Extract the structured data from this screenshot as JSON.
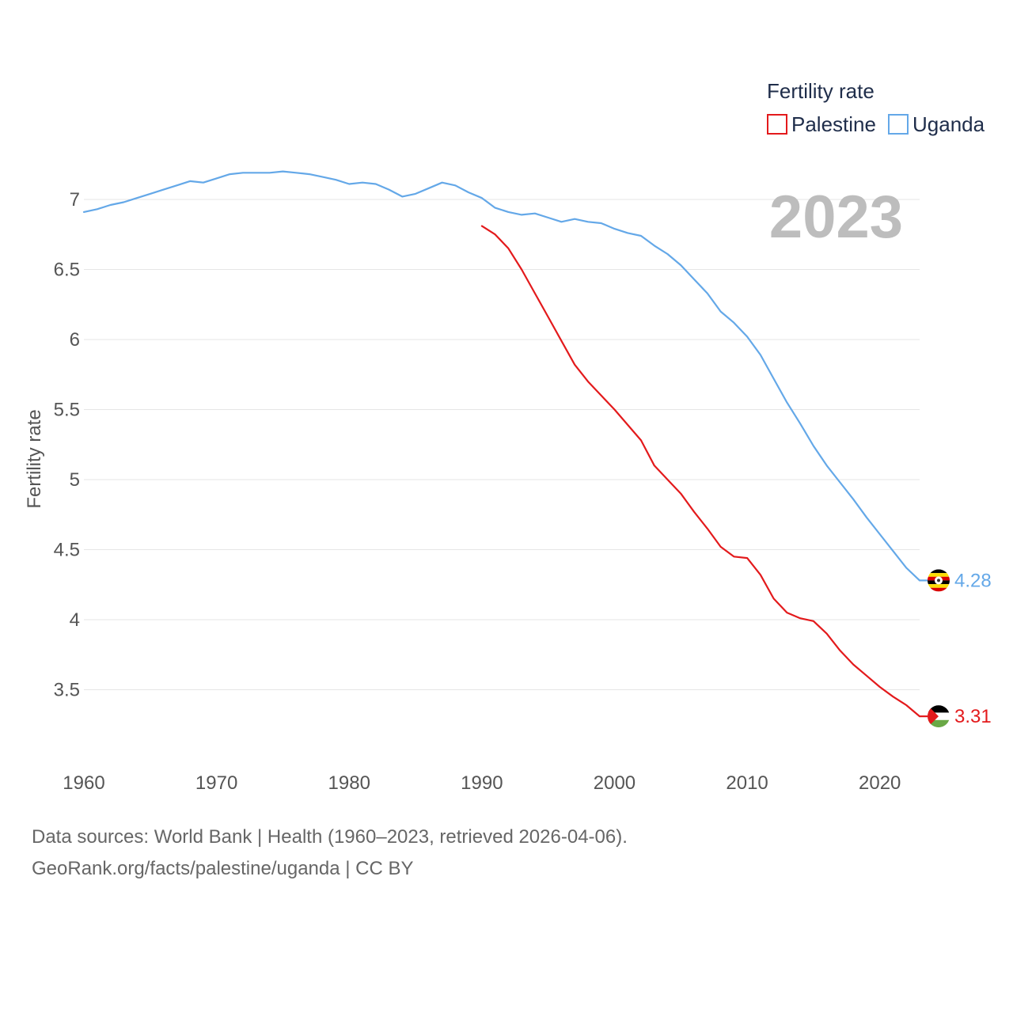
{
  "chart_data": {
    "type": "line",
    "legend_title": "Fertility rate",
    "ylabel": "Fertility rate",
    "xlabel": "",
    "year_label": "2023",
    "xlim": [
      1960,
      2023
    ],
    "ylim": [
      3.0,
      7.35
    ],
    "x_ticks": [
      1960,
      1970,
      1980,
      1990,
      2000,
      2010,
      2020
    ],
    "y_ticks": [
      3.5,
      4,
      4.5,
      5,
      5.5,
      6,
      6.5,
      7
    ],
    "legend_position": "top-right",
    "series": [
      {
        "name": "Palestine",
        "color": "#e31a1c",
        "flag_icon": "palestine-flag-icon",
        "end_label": "3.31",
        "points": [
          [
            1990,
            6.81
          ],
          [
            1991,
            6.75
          ],
          [
            1992,
            6.65
          ],
          [
            1993,
            6.5
          ],
          [
            1994,
            6.33
          ],
          [
            1995,
            6.16
          ],
          [
            1996,
            5.99
          ],
          [
            1997,
            5.82
          ],
          [
            1998,
            5.7
          ],
          [
            1999,
            5.6
          ],
          [
            2000,
            5.5
          ],
          [
            2001,
            5.39
          ],
          [
            2002,
            5.28
          ],
          [
            2003,
            5.1
          ],
          [
            2004,
            5.0
          ],
          [
            2005,
            4.9
          ],
          [
            2006,
            4.77
          ],
          [
            2007,
            4.65
          ],
          [
            2008,
            4.52
          ],
          [
            2009,
            4.45
          ],
          [
            2010,
            4.44
          ],
          [
            2011,
            4.32
          ],
          [
            2012,
            4.15
          ],
          [
            2013,
            4.05
          ],
          [
            2014,
            4.01
          ],
          [
            2015,
            3.99
          ],
          [
            2016,
            3.9
          ],
          [
            2017,
            3.78
          ],
          [
            2018,
            3.68
          ],
          [
            2019,
            3.6
          ],
          [
            2020,
            3.52
          ],
          [
            2021,
            3.45
          ],
          [
            2022,
            3.39
          ],
          [
            2023,
            3.31
          ]
        ]
      },
      {
        "name": "Uganda",
        "color": "#64a8e8",
        "flag_icon": "uganda-flag-icon",
        "end_label": "4.28",
        "points": [
          [
            1960,
            6.91
          ],
          [
            1961,
            6.93
          ],
          [
            1962,
            6.96
          ],
          [
            1963,
            6.98
          ],
          [
            1964,
            7.01
          ],
          [
            1965,
            7.04
          ],
          [
            1966,
            7.07
          ],
          [
            1967,
            7.1
          ],
          [
            1968,
            7.13
          ],
          [
            1969,
            7.12
          ],
          [
            1970,
            7.15
          ],
          [
            1971,
            7.18
          ],
          [
            1972,
            7.19
          ],
          [
            1973,
            7.19
          ],
          [
            1974,
            7.19
          ],
          [
            1975,
            7.2
          ],
          [
            1976,
            7.19
          ],
          [
            1977,
            7.18
          ],
          [
            1978,
            7.16
          ],
          [
            1979,
            7.14
          ],
          [
            1980,
            7.11
          ],
          [
            1981,
            7.12
          ],
          [
            1982,
            7.11
          ],
          [
            1983,
            7.07
          ],
          [
            1984,
            7.02
          ],
          [
            1985,
            7.04
          ],
          [
            1986,
            7.08
          ],
          [
            1987,
            7.12
          ],
          [
            1988,
            7.1
          ],
          [
            1989,
            7.05
          ],
          [
            1990,
            7.01
          ],
          [
            1991,
            6.94
          ],
          [
            1992,
            6.91
          ],
          [
            1993,
            6.89
          ],
          [
            1994,
            6.9
          ],
          [
            1995,
            6.87
          ],
          [
            1996,
            6.84
          ],
          [
            1997,
            6.86
          ],
          [
            1998,
            6.84
          ],
          [
            1999,
            6.83
          ],
          [
            2000,
            6.79
          ],
          [
            2001,
            6.76
          ],
          [
            2002,
            6.74
          ],
          [
            2003,
            6.67
          ],
          [
            2004,
            6.61
          ],
          [
            2005,
            6.53
          ],
          [
            2006,
            6.43
          ],
          [
            2007,
            6.33
          ],
          [
            2008,
            6.2
          ],
          [
            2009,
            6.12
          ],
          [
            2010,
            6.02
          ],
          [
            2011,
            5.89
          ],
          [
            2012,
            5.72
          ],
          [
            2013,
            5.55
          ],
          [
            2014,
            5.4
          ],
          [
            2015,
            5.24
          ],
          [
            2016,
            5.1
          ],
          [
            2017,
            4.98
          ],
          [
            2018,
            4.86
          ],
          [
            2019,
            4.73
          ],
          [
            2020,
            4.61
          ],
          [
            2021,
            4.49
          ],
          [
            2022,
            4.37
          ],
          [
            2023,
            4.28
          ]
        ]
      }
    ]
  },
  "footer": {
    "source": "Data sources: World Bank | Health (1960–2023, retrieved 2026-04-06).",
    "credit": "GeoRank.org/facts/palestine/uganda | CC BY"
  }
}
